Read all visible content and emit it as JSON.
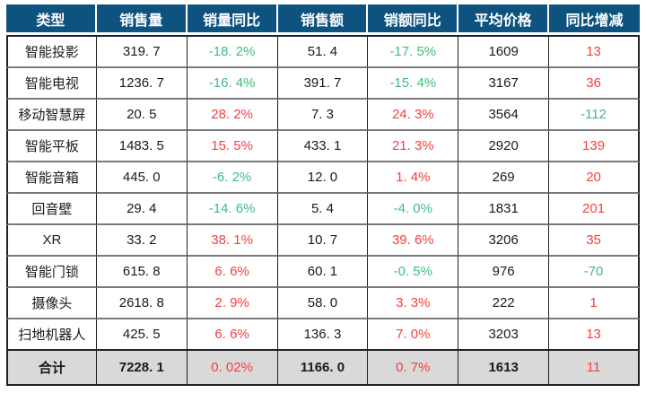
{
  "colors": {
    "header_bg": "#0E537F",
    "header_text": "#FFFFFF",
    "up": "#F93E3E",
    "down": "#3FBD82",
    "total_bg": "#D9D9D9",
    "body_text": "#1A1A1A",
    "border_dark": "#222222",
    "border_gray": "#7A7A7A"
  },
  "display": {
    "header": [
      "类型",
      "销售量",
      "销量同比",
      "销售额",
      "销额同比",
      "平均价格",
      "同比增减"
    ],
    "rows": [
      [
        "智能投影",
        "319. 7",
        {
          "t": "-18. 2%",
          "c": "down"
        },
        "51. 4",
        {
          "t": "-17. 5%",
          "c": "down"
        },
        "1609",
        {
          "t": "13",
          "c": "up"
        }
      ],
      [
        "智能电视",
        "1236. 7",
        {
          "t": "-16. 4%",
          "c": "down"
        },
        "391. 7",
        {
          "t": "-15. 4%",
          "c": "down"
        },
        "3167",
        {
          "t": "36",
          "c": "up"
        }
      ],
      [
        "移动智慧屏",
        "20. 5",
        {
          "t": "28. 2%",
          "c": "up"
        },
        "7. 3",
        {
          "t": "24. 3%",
          "c": "up"
        },
        "3564",
        {
          "t": "-112",
          "c": "down"
        }
      ],
      [
        "智能平板",
        "1483. 5",
        {
          "t": "15. 5%",
          "c": "up"
        },
        "433. 1",
        {
          "t": "21. 3%",
          "c": "up"
        },
        "2920",
        {
          "t": "139",
          "c": "up"
        }
      ],
      [
        "智能音箱",
        "445. 0",
        {
          "t": "-6. 2%",
          "c": "down"
        },
        "12. 0",
        {
          "t": "1. 4%",
          "c": "up"
        },
        "269",
        {
          "t": "20",
          "c": "up"
        }
      ],
      [
        "回音壁",
        "29. 4",
        {
          "t": "-14. 6%",
          "c": "down"
        },
        "5. 4",
        {
          "t": "-4. 0%",
          "c": "down"
        },
        "1831",
        {
          "t": "201",
          "c": "up"
        }
      ],
      [
        "XR",
        "33. 2",
        {
          "t": "38. 1%",
          "c": "up"
        },
        "10. 7",
        {
          "t": "39. 6%",
          "c": "up"
        },
        "3206",
        {
          "t": "35",
          "c": "up"
        }
      ],
      [
        "智能门锁",
        "615. 8",
        {
          "t": "6. 6%",
          "c": "up"
        },
        "60. 1",
        {
          "t": "-0. 5%",
          "c": "down"
        },
        "976",
        {
          "t": "-70",
          "c": "down"
        }
      ],
      [
        "摄像头",
        "2618. 8",
        {
          "t": "2. 9%",
          "c": "up"
        },
        "58. 0",
        {
          "t": "3. 3%",
          "c": "up"
        },
        "222",
        {
          "t": "1",
          "c": "up"
        }
      ],
      [
        "扫地机器人",
        "425. 5",
        {
          "t": "6. 6%",
          "c": "up"
        },
        "136. 3",
        {
          "t": "7. 0%",
          "c": "up"
        },
        "3203",
        {
          "t": "13",
          "c": "up"
        }
      ]
    ],
    "total": [
      "合计",
      "7228. 1",
      {
        "t": "0. 02%",
        "c": "up"
      },
      "1166. 0",
      {
        "t": "0. 7%",
        "c": "up"
      },
      "1613",
      {
        "t": "11",
        "c": "up"
      }
    ]
  },
  "chart_data": {
    "type": "table",
    "title": "",
    "columns": [
      "类型",
      "销售量",
      "销量同比",
      "销售额",
      "销额同比",
      "平均价格",
      "同比增减"
    ],
    "categories": [
      "智能投影",
      "智能电视",
      "移动智慧屏",
      "智能平板",
      "智能音箱",
      "回音壁",
      "XR",
      "智能门锁",
      "摄像头",
      "扫地机器人"
    ],
    "series": [
      {
        "name": "销售量",
        "values": [
          319.7,
          1236.7,
          20.5,
          1483.5,
          445.0,
          29.4,
          33.2,
          615.8,
          2618.8,
          425.5
        ]
      },
      {
        "name": "销量同比(%)",
        "values": [
          -18.2,
          -16.4,
          28.2,
          15.5,
          -6.2,
          -14.6,
          38.1,
          6.6,
          2.9,
          6.6
        ]
      },
      {
        "name": "销售额",
        "values": [
          51.4,
          391.7,
          7.3,
          433.1,
          12.0,
          5.4,
          10.7,
          60.1,
          58.0,
          136.3
        ]
      },
      {
        "name": "销额同比(%)",
        "values": [
          -17.5,
          -15.4,
          24.3,
          21.3,
          1.4,
          -4.0,
          39.6,
          -0.5,
          3.3,
          7.0
        ]
      },
      {
        "name": "平均价格",
        "values": [
          1609,
          3167,
          3564,
          2920,
          269,
          1831,
          3206,
          976,
          222,
          3203
        ]
      },
      {
        "name": "同比增减",
        "values": [
          13,
          36,
          -112,
          139,
          20,
          201,
          35,
          -70,
          1,
          13
        ]
      }
    ],
    "total_row": {
      "类型": "合计",
      "销售量": 7228.1,
      "销量同比(%)": 0.02,
      "销售额": 1166.0,
      "销额同比(%)": 0.7,
      "平均价格": 1613,
      "同比增减": 11
    },
    "color_rule": "positive values red (#F93E3E), negative values green (#3FBD82) in columns 销量同比/销额同比/同比增减"
  }
}
